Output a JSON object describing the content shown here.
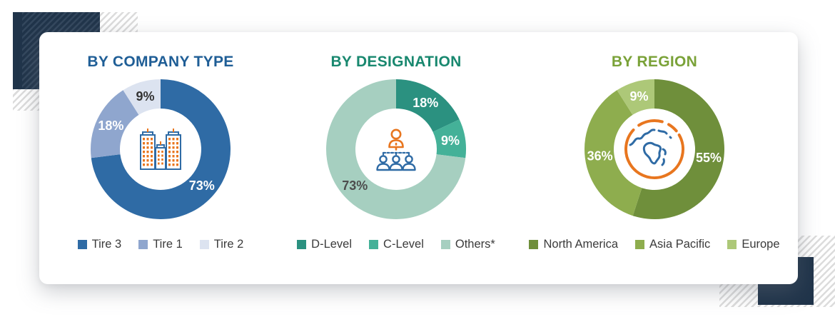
{
  "decor": {
    "navy": "#20344a",
    "navy_stripe": "#33475d",
    "hatch_line": "#dcdcdc",
    "card_background": "#ffffff",
    "icon_blue": "#2f6ba5",
    "icon_orange": "#e8761f"
  },
  "chart_data": [
    {
      "type": "pie",
      "variant": "donut",
      "title": "BY COMPANY TYPE",
      "title_color": "#1f5e96",
      "center_icon": "buildings-icon",
      "legend_position": "bottom",
      "segments": [
        {
          "label": "Tire 3",
          "value": 73,
          "color": "#2f6ba5",
          "value_label": "73%",
          "value_label_color": "#ffffff"
        },
        {
          "label": "Tire 1",
          "value": 18,
          "color": "#8fa6ce",
          "value_label": "18%",
          "value_label_color": "#ffffff"
        },
        {
          "label": "Tire 2",
          "value": 9,
          "color": "#dce3f0",
          "value_label": "9%",
          "value_label_color": "#333333"
        }
      ]
    },
    {
      "type": "pie",
      "variant": "donut",
      "title": "BY DESIGNATION",
      "title_color": "#19886f",
      "center_icon": "org-chart-icon",
      "legend_position": "bottom",
      "segments": [
        {
          "label": "D-Level",
          "value": 18,
          "color": "#2b9180",
          "value_label": "18%",
          "value_label_color": "#ffffff"
        },
        {
          "label": "C-Level",
          "value": 9,
          "color": "#44b198",
          "value_label": "9%",
          "value_label_color": "#ffffff"
        },
        {
          "label": "Others*",
          "value": 73,
          "color": "#a6cfc0",
          "value_label": "73%",
          "value_label_color": "#4d4d4d"
        }
      ]
    },
    {
      "type": "pie",
      "variant": "donut",
      "title": "BY REGION",
      "title_color": "#7aa238",
      "center_icon": "globe-icon",
      "legend_position": "bottom",
      "segments": [
        {
          "label": "North America",
          "value": 55,
          "color": "#6f8f3b",
          "value_label": "55%",
          "value_label_color": "#ffffff"
        },
        {
          "label": "Asia Pacific",
          "value": 36,
          "color": "#8ead4e",
          "value_label": "36%",
          "value_label_color": "#ffffff"
        },
        {
          "label": "Europe",
          "value": 9,
          "color": "#adc878",
          "value_label": "9%",
          "value_label_color": "#ffffff"
        }
      ]
    }
  ]
}
